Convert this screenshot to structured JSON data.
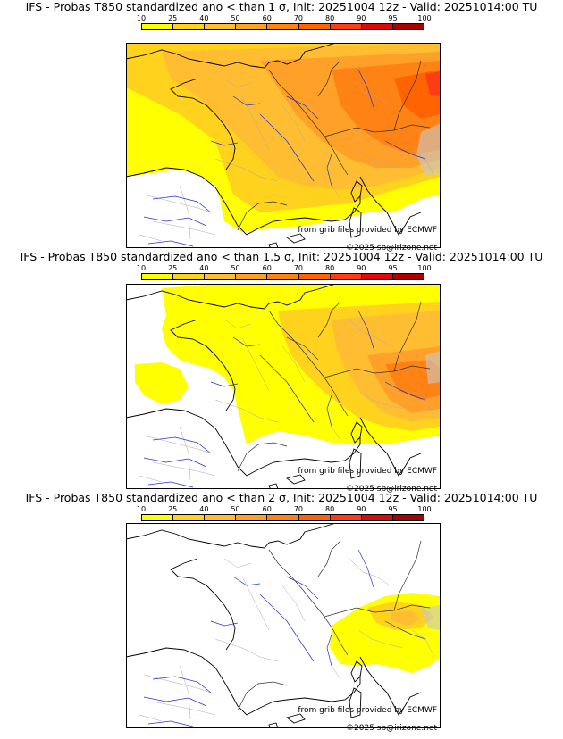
{
  "colorbar": {
    "ticks": [
      "10",
      "25",
      "40",
      "50",
      "60",
      "70",
      "80",
      "90",
      "95",
      "100"
    ],
    "colors": [
      "#ffff00",
      "#ffd21e",
      "#ffbe32",
      "#ffa028",
      "#ff8214",
      "#ff6400",
      "#ff3c14",
      "#dc0a0a",
      "#aa0000",
      "#780000"
    ]
  },
  "panels": [
    {
      "title": "IFS - Probas T850  standardized ano < than 1 σ, Init: 20251004 12z - Valid: 20251014:00 TU",
      "source_credit": "from grib files provided by ECMWF",
      "copyright": "©2025 sb@irizone.net"
    },
    {
      "title": "IFS - Probas T850  standardized ano < than 1.5 σ, Init: 20251004 12z - Valid: 20251014:00 TU",
      "source_credit": "from grib files provided by ECMWF",
      "copyright": "©2025 sb@irizone.net"
    },
    {
      "title": "IFS - Probas T850  standardized ano < than 2 σ, Init: 20251004 12z - Valid: 20251014:00 TU",
      "source_credit": "from grib files provided by ECMWF",
      "copyright": "©2025 sb@irizone.net"
    }
  ]
}
